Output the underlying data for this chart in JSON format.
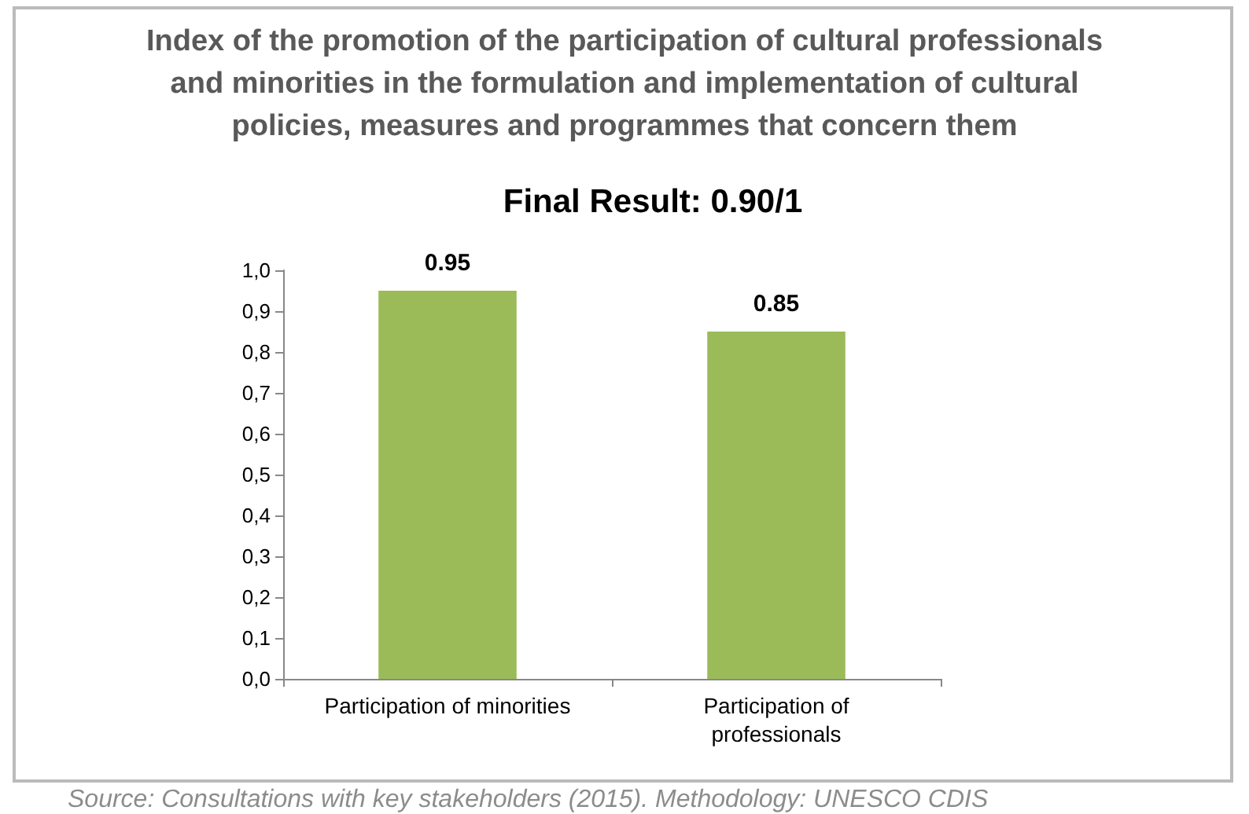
{
  "chart_data": {
    "type": "bar",
    "title": "Index of the promotion of the participation of cultural professionals\nand minorities in the formulation and implementation of cultural\npolicies, measures and programmes that concern them",
    "subtitle": "Final Result: 0.90/1",
    "categories": [
      "Participation of minorities",
      "Participation of\nprofessionals"
    ],
    "values": [
      0.95,
      0.85
    ],
    "color": "#9bbb59",
    "data_labels": true,
    "ylim": [
      0,
      1
    ],
    "yticks": [
      {
        "value": 0,
        "label": "0,0"
      },
      {
        "value": 0.1,
        "label": "0,1"
      },
      {
        "value": 0.2,
        "label": "0,2"
      },
      {
        "value": 0.3,
        "label": "0,3"
      },
      {
        "value": 0.4,
        "label": "0,4"
      },
      {
        "value": 0.5,
        "label": "0,5"
      },
      {
        "value": 0.6,
        "label": "0,6"
      },
      {
        "value": 0.7,
        "label": "0,7"
      },
      {
        "value": 0.8,
        "label": "0,8"
      },
      {
        "value": 0.9,
        "label": "0,9"
      },
      {
        "value": 1,
        "label": "1,0"
      }
    ],
    "grid": false,
    "annotations": [
      "Source: Consultations with key stakeholders (2015). Methodology: UNESCO CDIS"
    ]
  }
}
